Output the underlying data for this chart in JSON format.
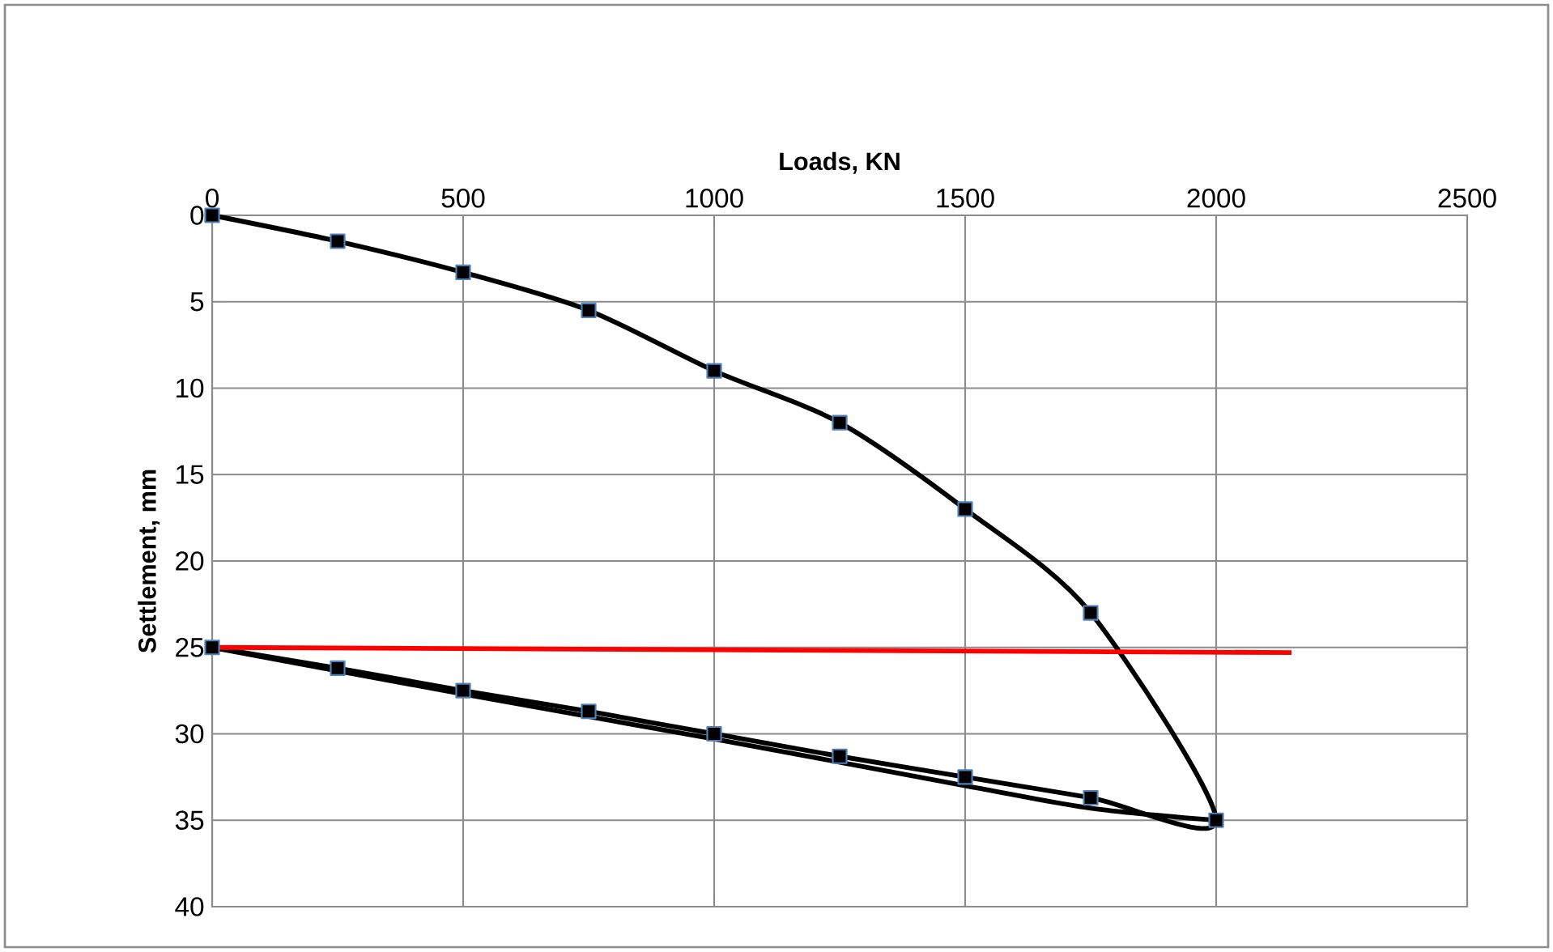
{
  "chart_data": {
    "type": "line",
    "xlabel": "Loads, KN",
    "ylabel": "Settlement,  mm",
    "xlim": [
      0,
      2500
    ],
    "ylim": [
      40,
      0
    ],
    "xticks": [
      0,
      500,
      1000,
      1500,
      2000,
      2500
    ],
    "yticks": [
      0,
      5,
      10,
      15,
      20,
      25,
      30,
      35,
      40
    ],
    "grid": true,
    "series": [
      {
        "color": "#000000",
        "marker": "square",
        "x": [
          0,
          250,
          500,
          750,
          1000,
          1250,
          1500,
          1750,
          2000,
          1750,
          1500,
          1250,
          1000,
          750,
          500,
          250,
          0
        ],
        "values": [
          0,
          1.5,
          3.3,
          5.5,
          9,
          12,
          17,
          23,
          35,
          33.7,
          32.5,
          31.3,
          30,
          28.7,
          27.5,
          26.2,
          25
        ]
      },
      {
        "color": "#000000",
        "marker": "none",
        "x": [
          0,
          500,
          1000,
          1500,
          1750,
          2000
        ],
        "values": [
          25,
          27.7,
          30.3,
          33,
          34.3,
          35
        ]
      },
      {
        "color": "#ff0000",
        "marker": "none",
        "x": [
          0,
          2150
        ],
        "values": [
          25,
          25.3
        ]
      }
    ]
  }
}
